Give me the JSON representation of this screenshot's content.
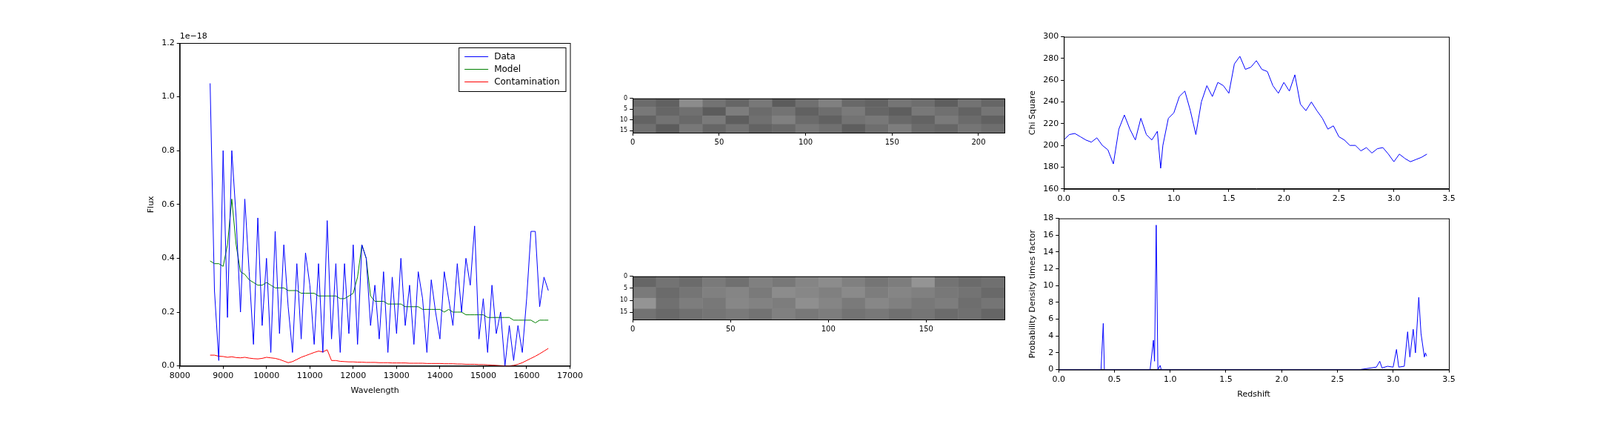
{
  "chart_data": [
    {
      "type": "line",
      "x_label": "Wavelength",
      "y_label": "Flux",
      "annotation": "1e−18",
      "xlim": [
        8000,
        17000
      ],
      "xticks": [
        8000,
        9000,
        10000,
        11000,
        12000,
        13000,
        14000,
        15000,
        16000,
        17000
      ],
      "ylim": [
        0,
        1.2
      ],
      "yticks": [
        {
          "value": 0,
          "label": "0.0"
        },
        {
          "value": 0.2,
          "label": "0.2"
        },
        {
          "value": 0.4,
          "label": "0.4"
        },
        {
          "value": 0.6,
          "label": "0.6"
        },
        {
          "value": 0.8,
          "label": "0.8"
        },
        {
          "value": 1.0,
          "label": "1.0"
        },
        {
          "value": 1.2,
          "label": "1.2"
        }
      ],
      "grid": false,
      "legend": "upper right",
      "x": [
        8700,
        8800,
        8900,
        9000,
        9100,
        9200,
        9300,
        9400,
        9500,
        9600,
        9700,
        9800,
        9900,
        10000,
        10100,
        10200,
        10300,
        10400,
        10500,
        10600,
        10700,
        10800,
        10900,
        11000,
        11100,
        11200,
        11300,
        11400,
        11500,
        11600,
        11700,
        11800,
        11900,
        12000,
        12100,
        12200,
        12300,
        12400,
        12500,
        12600,
        12700,
        12800,
        12900,
        13000,
        13100,
        13200,
        13300,
        13400,
        13500,
        13600,
        13700,
        13800,
        13900,
        14000,
        14100,
        14200,
        14300,
        14400,
        14500,
        14600,
        14700,
        14800,
        14900,
        15000,
        15100,
        15200,
        15300,
        15400,
        15500,
        15600,
        15700,
        15800,
        15900,
        16000,
        16100,
        16200,
        16300,
        16400,
        16500
      ],
      "series": [
        {
          "name": "Data",
          "color": "#0000ff",
          "values": [
            1.05,
            0.28,
            0.02,
            0.8,
            0.18,
            0.8,
            0.55,
            0.2,
            0.62,
            0.35,
            0.08,
            0.55,
            0.15,
            0.4,
            0.05,
            0.5,
            0.12,
            0.45,
            0.22,
            0.05,
            0.38,
            0.1,
            0.42,
            0.3,
            0.08,
            0.38,
            0.05,
            0.54,
            0.1,
            0.38,
            0.05,
            0.38,
            0.12,
            0.45,
            0.08,
            0.45,
            0.4,
            0.15,
            0.3,
            0.1,
            0.35,
            0.05,
            0.33,
            0.12,
            0.4,
            0.15,
            0.3,
            0.08,
            0.35,
            0.25,
            0.05,
            0.32,
            0.2,
            0.1,
            0.35,
            0.25,
            0.15,
            0.38,
            0.2,
            0.4,
            0.3,
            0.52,
            0.1,
            0.25,
            0.05,
            0.3,
            0.12,
            0.2,
            0.0,
            0.15,
            0.02,
            0.15,
            0.05,
            0.25,
            0.5,
            0.5,
            0.22,
            0.33,
            0.28
          ]
        },
        {
          "name": "Model",
          "color": "#008000",
          "values": [
            0.39,
            0.38,
            0.38,
            0.37,
            0.45,
            0.62,
            0.45,
            0.35,
            0.34,
            0.32,
            0.31,
            0.3,
            0.3,
            0.31,
            0.3,
            0.29,
            0.29,
            0.29,
            0.28,
            0.28,
            0.28,
            0.27,
            0.27,
            0.27,
            0.27,
            0.26,
            0.26,
            0.26,
            0.26,
            0.26,
            0.25,
            0.25,
            0.26,
            0.27,
            0.33,
            0.45,
            0.4,
            0.26,
            0.24,
            0.24,
            0.24,
            0.23,
            0.23,
            0.23,
            0.23,
            0.22,
            0.22,
            0.22,
            0.22,
            0.21,
            0.21,
            0.21,
            0.21,
            0.21,
            0.2,
            0.21,
            0.2,
            0.2,
            0.2,
            0.19,
            0.19,
            0.19,
            0.19,
            0.19,
            0.18,
            0.18,
            0.18,
            0.18,
            0.18,
            0.18,
            0.17,
            0.17,
            0.17,
            0.17,
            0.17,
            0.16,
            0.17,
            0.17,
            0.17
          ]
        },
        {
          "name": "Contamination",
          "color": "#ff0000",
          "values": [
            0.04,
            0.04,
            0.036,
            0.035,
            0.032,
            0.034,
            0.031,
            0.03,
            0.032,
            0.029,
            0.027,
            0.026,
            0.028,
            0.032,
            0.03,
            0.028,
            0.024,
            0.018,
            0.012,
            0.016,
            0.024,
            0.032,
            0.038,
            0.044,
            0.05,
            0.055,
            0.052,
            0.06,
            0.02,
            0.02,
            0.017,
            0.016,
            0.015,
            0.015,
            0.014,
            0.014,
            0.013,
            0.013,
            0.013,
            0.012,
            0.012,
            0.012,
            0.011,
            0.011,
            0.011,
            0.011,
            0.01,
            0.01,
            0.01,
            0.01,
            0.009,
            0.009,
            0.009,
            0.009,
            0.008,
            0.008,
            0.008,
            0.007,
            0.007,
            0.006,
            0.006,
            0.006,
            0.005,
            0.005,
            0.004,
            0.003,
            0.002,
            0.001,
            0.0,
            0.0,
            0.002,
            0.006,
            0.012,
            0.02,
            0.028,
            0.036,
            0.045,
            0.055,
            0.065
          ]
        }
      ]
    },
    {
      "type": "heatmap",
      "xlim": [
        0,
        215
      ],
      "xticks": [
        0,
        50,
        100,
        150,
        200
      ],
      "ylim": [
        16,
        0
      ],
      "yticks": [
        0,
        5,
        10,
        15
      ],
      "cells": [
        [
          0.42,
          0.38,
          0.55,
          0.45,
          0.4,
          0.47,
          0.36,
          0.44,
          0.5,
          0.41,
          0.39,
          0.46,
          0.43,
          0.37,
          0.45,
          0.4
        ],
        [
          0.47,
          0.4,
          0.44,
          0.36,
          0.49,
          0.42,
          0.45,
          0.38,
          0.43,
          0.48,
          0.4,
          0.37,
          0.47,
          0.44,
          0.39,
          0.46
        ],
        [
          0.39,
          0.45,
          0.41,
          0.48,
          0.37,
          0.44,
          0.5,
          0.42,
          0.38,
          0.45,
          0.47,
          0.41,
          0.39,
          0.48,
          0.42,
          0.38
        ],
        [
          0.44,
          0.36,
          0.47,
          0.4,
          0.45,
          0.39,
          0.41,
          0.47,
          0.44,
          0.37,
          0.43,
          0.49,
          0.42,
          0.4,
          0.46,
          0.43
        ]
      ]
    },
    {
      "type": "heatmap",
      "xlim": [
        0,
        190
      ],
      "xticks": [
        0,
        50,
        100,
        150
      ],
      "ylim": [
        18,
        0
      ],
      "yticks": [
        0,
        5,
        10,
        15
      ],
      "cells": [
        [
          0.4,
          0.45,
          0.42,
          0.48,
          0.44,
          0.5,
          0.47,
          0.52,
          0.55,
          0.5,
          0.46,
          0.49,
          0.58,
          0.45,
          0.42,
          0.44
        ],
        [
          0.48,
          0.42,
          0.46,
          0.5,
          0.52,
          0.48,
          0.55,
          0.53,
          0.5,
          0.54,
          0.49,
          0.52,
          0.5,
          0.47,
          0.45,
          0.41
        ],
        [
          0.58,
          0.44,
          0.49,
          0.47,
          0.53,
          0.51,
          0.49,
          0.56,
          0.52,
          0.48,
          0.53,
          0.5,
          0.47,
          0.49,
          0.43,
          0.46
        ],
        [
          0.45,
          0.41,
          0.44,
          0.46,
          0.48,
          0.45,
          0.5,
          0.47,
          0.49,
          0.45,
          0.47,
          0.44,
          0.46,
          0.42,
          0.44,
          0.4
        ]
      ]
    },
    {
      "type": "line",
      "y_label": "Chi Square",
      "xlim": [
        0,
        3.5
      ],
      "xticks": [
        {
          "value": 0,
          "label": "0.0"
        },
        0.5,
        {
          "value": 1,
          "label": "1.0"
        },
        1.5,
        {
          "value": 2,
          "label": "2.0"
        },
        2.5,
        {
          "value": 3,
          "label": "3.0"
        },
        3.5
      ],
      "ylim": [
        160,
        300
      ],
      "yticks": [
        160,
        180,
        200,
        220,
        240,
        260,
        280,
        300
      ],
      "grid": false,
      "x": [
        0.0,
        0.05,
        0.1,
        0.15,
        0.2,
        0.25,
        0.3,
        0.35,
        0.4,
        0.45,
        0.5,
        0.55,
        0.6,
        0.65,
        0.7,
        0.75,
        0.8,
        0.85,
        0.88,
        0.9,
        0.95,
        1.0,
        1.05,
        1.1,
        1.15,
        1.2,
        1.25,
        1.3,
        1.35,
        1.4,
        1.45,
        1.5,
        1.55,
        1.6,
        1.65,
        1.7,
        1.75,
        1.8,
        1.85,
        1.9,
        1.95,
        2.0,
        2.05,
        2.1,
        2.15,
        2.2,
        2.25,
        2.3,
        2.35,
        2.4,
        2.45,
        2.5,
        2.55,
        2.6,
        2.65,
        2.7,
        2.75,
        2.8,
        2.85,
        2.9,
        2.95,
        3.0,
        3.05,
        3.1,
        3.15,
        3.2,
        3.25,
        3.3
      ],
      "series": [
        {
          "name": "Chi Square",
          "color": "#0000ff",
          "values": [
            205,
            210,
            211,
            208,
            205,
            203,
            207,
            200,
            196,
            183,
            215,
            228,
            215,
            205,
            225,
            210,
            205,
            213,
            179,
            200,
            225,
            230,
            245,
            250,
            232,
            210,
            240,
            255,
            245,
            258,
            255,
            248,
            275,
            282,
            270,
            272,
            278,
            270,
            268,
            255,
            248,
            258,
            250,
            265,
            238,
            232,
            240,
            232,
            225,
            215,
            218,
            208,
            205,
            200,
            200,
            195,
            198,
            193,
            197,
            198,
            192,
            185,
            192,
            188,
            185,
            187,
            189,
            192
          ]
        }
      ]
    },
    {
      "type": "line",
      "x_label": "Redshift",
      "y_label": "Probability Density times factor",
      "xlim": [
        0,
        3.5
      ],
      "xticks": [
        {
          "value": 0,
          "label": "0.0"
        },
        0.5,
        {
          "value": 1,
          "label": "1.0"
        },
        1.5,
        {
          "value": 2,
          "label": "2.0"
        },
        2.5,
        {
          "value": 3,
          "label": "3.0"
        },
        3.5
      ],
      "ylim": [
        0,
        18
      ],
      "yticks": [
        0,
        2,
        4,
        6,
        8,
        10,
        12,
        14,
        16,
        18
      ],
      "grid": false,
      "x": [
        0,
        0.38,
        0.4,
        0.41,
        0.82,
        0.85,
        0.86,
        0.875,
        0.89,
        0.91,
        0.92,
        2.7,
        2.85,
        2.88,
        2.9,
        2.95,
        3.0,
        3.03,
        3.05,
        3.1,
        3.13,
        3.15,
        3.18,
        3.2,
        3.23,
        3.25,
        3.28,
        3.29,
        3.3
      ],
      "series": [
        {
          "name": "Probability Density times factor",
          "color": "#0000ff",
          "values": [
            0,
            0,
            5.5,
            0,
            0,
            3.5,
            1,
            17.2,
            0,
            0.5,
            0,
            0,
            0.3,
            1,
            0.2,
            0.4,
            0.3,
            2.4,
            0.3,
            0.4,
            4.5,
            1.5,
            4.8,
            2,
            8.6,
            4.3,
            1.5,
            2,
            1.6
          ]
        }
      ]
    }
  ]
}
